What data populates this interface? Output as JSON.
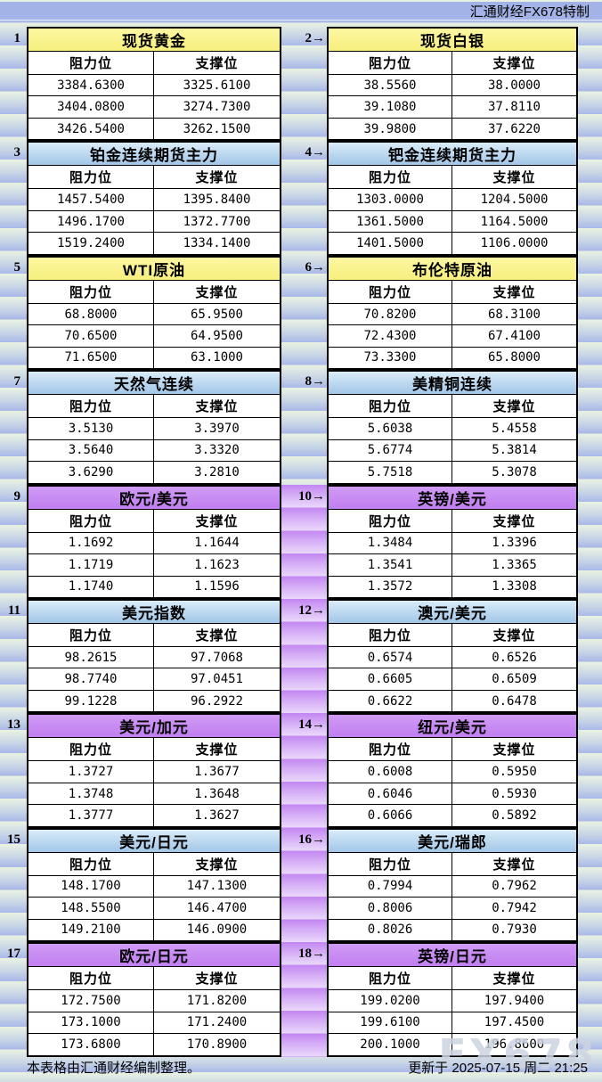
{
  "header": {
    "brand": "汇通财经FX678特制"
  },
  "footer": {
    "note": "本表格由汇通财经编制整理。",
    "updated": "更新于 2025-07-15 周二 21:25"
  },
  "watermark": "FX678",
  "colors": {
    "title_yellow": "#f9f28d",
    "title_blue": "#b9d7f0",
    "title_purple": "#c584f1",
    "gutter_purple": "#c386f1",
    "stripe_green": "#eaf2e2",
    "stripe_blue": "#a9b8e8",
    "topbar_blue": "#a3b3e7"
  },
  "chart_data": {
    "type": "table",
    "title": "汇通财经FX678特制 阻力位/支撑位",
    "columns": [
      "阻力位",
      "支撑位"
    ],
    "tables": [
      {
        "index_label": "1",
        "title": "现货黄金",
        "theme": "yellow",
        "rows": [
          [
            "3384.6300",
            "3325.6100"
          ],
          [
            "3404.0800",
            "3274.7300"
          ],
          [
            "3426.5400",
            "3262.1500"
          ]
        ]
      },
      {
        "index_label": "2→",
        "title": "现货白银",
        "theme": "yellow",
        "rows": [
          [
            "38.5560",
            "38.0000"
          ],
          [
            "39.1080",
            "37.8110"
          ],
          [
            "39.9800",
            "37.6220"
          ]
        ]
      },
      {
        "index_label": "3",
        "title": "铂金连续期货主力",
        "theme": "blue",
        "rows": [
          [
            "1457.5400",
            "1395.8400"
          ],
          [
            "1496.1700",
            "1372.7700"
          ],
          [
            "1519.2400",
            "1334.1400"
          ]
        ]
      },
      {
        "index_label": "4→",
        "title": "钯金连续期货主力",
        "theme": "blue",
        "rows": [
          [
            "1303.0000",
            "1204.5000"
          ],
          [
            "1361.5000",
            "1164.5000"
          ],
          [
            "1401.5000",
            "1106.0000"
          ]
        ]
      },
      {
        "index_label": "5",
        "title": "WTI原油",
        "theme": "yellow",
        "rows": [
          [
            "68.8000",
            "65.9500"
          ],
          [
            "70.6500",
            "64.9500"
          ],
          [
            "71.6500",
            "63.1000"
          ]
        ]
      },
      {
        "index_label": "6→",
        "title": "布伦特原油",
        "theme": "yellow",
        "rows": [
          [
            "70.8200",
            "68.3100"
          ],
          [
            "72.4300",
            "67.4100"
          ],
          [
            "73.3300",
            "65.8000"
          ]
        ]
      },
      {
        "index_label": "7",
        "title": "天然气连续",
        "theme": "blue",
        "rows": [
          [
            "3.5130",
            "3.3970"
          ],
          [
            "3.5640",
            "3.3320"
          ],
          [
            "3.6290",
            "3.2810"
          ]
        ]
      },
      {
        "index_label": "8→",
        "title": "美精铜连续",
        "theme": "blue",
        "rows": [
          [
            "5.6038",
            "5.4558"
          ],
          [
            "5.6774",
            "5.3814"
          ],
          [
            "5.7518",
            "5.3078"
          ]
        ]
      },
      {
        "index_label": "9",
        "title": "欧元/美元",
        "theme": "purple",
        "rows": [
          [
            "1.1692",
            "1.1644"
          ],
          [
            "1.1719",
            "1.1623"
          ],
          [
            "1.1740",
            "1.1596"
          ]
        ]
      },
      {
        "index_label": "10→",
        "title": "英镑/美元",
        "theme": "purple",
        "rows": [
          [
            "1.3484",
            "1.3396"
          ],
          [
            "1.3541",
            "1.3365"
          ],
          [
            "1.3572",
            "1.3308"
          ]
        ]
      },
      {
        "index_label": "11",
        "title": "美元指数",
        "theme": "blue",
        "rows": [
          [
            "98.2615",
            "97.7068"
          ],
          [
            "98.7740",
            "97.0451"
          ],
          [
            "99.1228",
            "96.2922"
          ]
        ]
      },
      {
        "index_label": "12→",
        "title": "澳元/美元",
        "theme": "blue",
        "rows": [
          [
            "0.6574",
            "0.6526"
          ],
          [
            "0.6605",
            "0.6509"
          ],
          [
            "0.6622",
            "0.6478"
          ]
        ]
      },
      {
        "index_label": "13",
        "title": "美元/加元",
        "theme": "purple",
        "rows": [
          [
            "1.3727",
            "1.3677"
          ],
          [
            "1.3748",
            "1.3648"
          ],
          [
            "1.3777",
            "1.3627"
          ]
        ]
      },
      {
        "index_label": "14→",
        "title": "纽元/美元",
        "theme": "purple",
        "rows": [
          [
            "0.6008",
            "0.5950"
          ],
          [
            "0.6046",
            "0.5930"
          ],
          [
            "0.6066",
            "0.5892"
          ]
        ]
      },
      {
        "index_label": "15",
        "title": "美元/日元",
        "theme": "blue",
        "rows": [
          [
            "148.1700",
            "147.1300"
          ],
          [
            "148.5500",
            "146.4700"
          ],
          [
            "149.2100",
            "146.0900"
          ]
        ]
      },
      {
        "index_label": "16→",
        "title": "美元/瑞郎",
        "theme": "blue",
        "rows": [
          [
            "0.7994",
            "0.7962"
          ],
          [
            "0.8006",
            "0.7942"
          ],
          [
            "0.8026",
            "0.7930"
          ]
        ]
      },
      {
        "index_label": "17",
        "title": "欧元/日元",
        "theme": "purple",
        "rows": [
          [
            "172.7500",
            "171.8200"
          ],
          [
            "173.1000",
            "171.2400"
          ],
          [
            "173.6800",
            "170.8900"
          ]
        ]
      },
      {
        "index_label": "18→",
        "title": "英镑/日元",
        "theme": "purple",
        "rows": [
          [
            "199.0200",
            "197.9400"
          ],
          [
            "199.6100",
            "197.4500"
          ],
          [
            "200.1000",
            "196.8600"
          ]
        ]
      }
    ]
  }
}
